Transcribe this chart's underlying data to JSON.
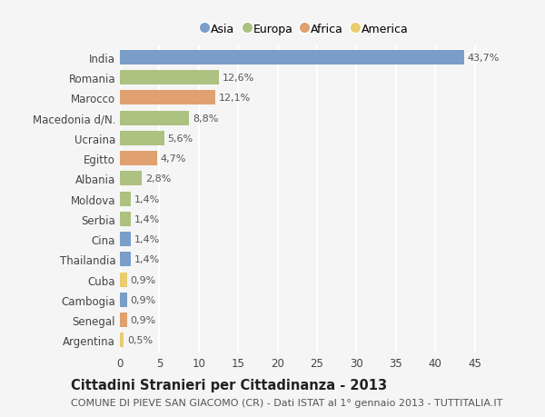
{
  "countries": [
    "India",
    "Romania",
    "Marocco",
    "Macedonia d/N.",
    "Ucraina",
    "Egitto",
    "Albania",
    "Moldova",
    "Serbia",
    "Cina",
    "Thailandia",
    "Cuba",
    "Cambogia",
    "Senegal",
    "Argentina"
  ],
  "values": [
    43.7,
    12.6,
    12.1,
    8.8,
    5.6,
    4.7,
    2.8,
    1.4,
    1.4,
    1.4,
    1.4,
    0.9,
    0.9,
    0.9,
    0.5
  ],
  "labels": [
    "43,7%",
    "12,6%",
    "12,1%",
    "8,8%",
    "5,6%",
    "4,7%",
    "2,8%",
    "1,4%",
    "1,4%",
    "1,4%",
    "1,4%",
    "0,9%",
    "0,9%",
    "0,9%",
    "0,5%"
  ],
  "continents": [
    "Asia",
    "Europa",
    "Africa",
    "Europa",
    "Europa",
    "Africa",
    "Europa",
    "Europa",
    "Europa",
    "Asia",
    "Asia",
    "America",
    "Asia",
    "Africa",
    "America"
  ],
  "continent_colors": {
    "Asia": "#7b9ec9",
    "Europa": "#adc180",
    "Africa": "#e0a070",
    "America": "#e8cc6e"
  },
  "legend_order": [
    "Asia",
    "Europa",
    "Africa",
    "America"
  ],
  "title": "Cittadini Stranieri per Cittadinanza - 2013",
  "subtitle": "COMUNE DI PIEVE SAN GIACOMO (CR) - Dati ISTAT al 1° gennaio 2013 - TUTTITALIA.IT",
  "xlim": [
    0,
    47
  ],
  "xticks": [
    0,
    5,
    10,
    15,
    20,
    25,
    30,
    35,
    40,
    45
  ],
  "background_color": "#f5f5f5",
  "grid_color": "#ffffff",
  "bar_height": 0.72,
  "title_fontsize": 10.5,
  "subtitle_fontsize": 8,
  "tick_fontsize": 8.5,
  "label_fontsize": 8
}
